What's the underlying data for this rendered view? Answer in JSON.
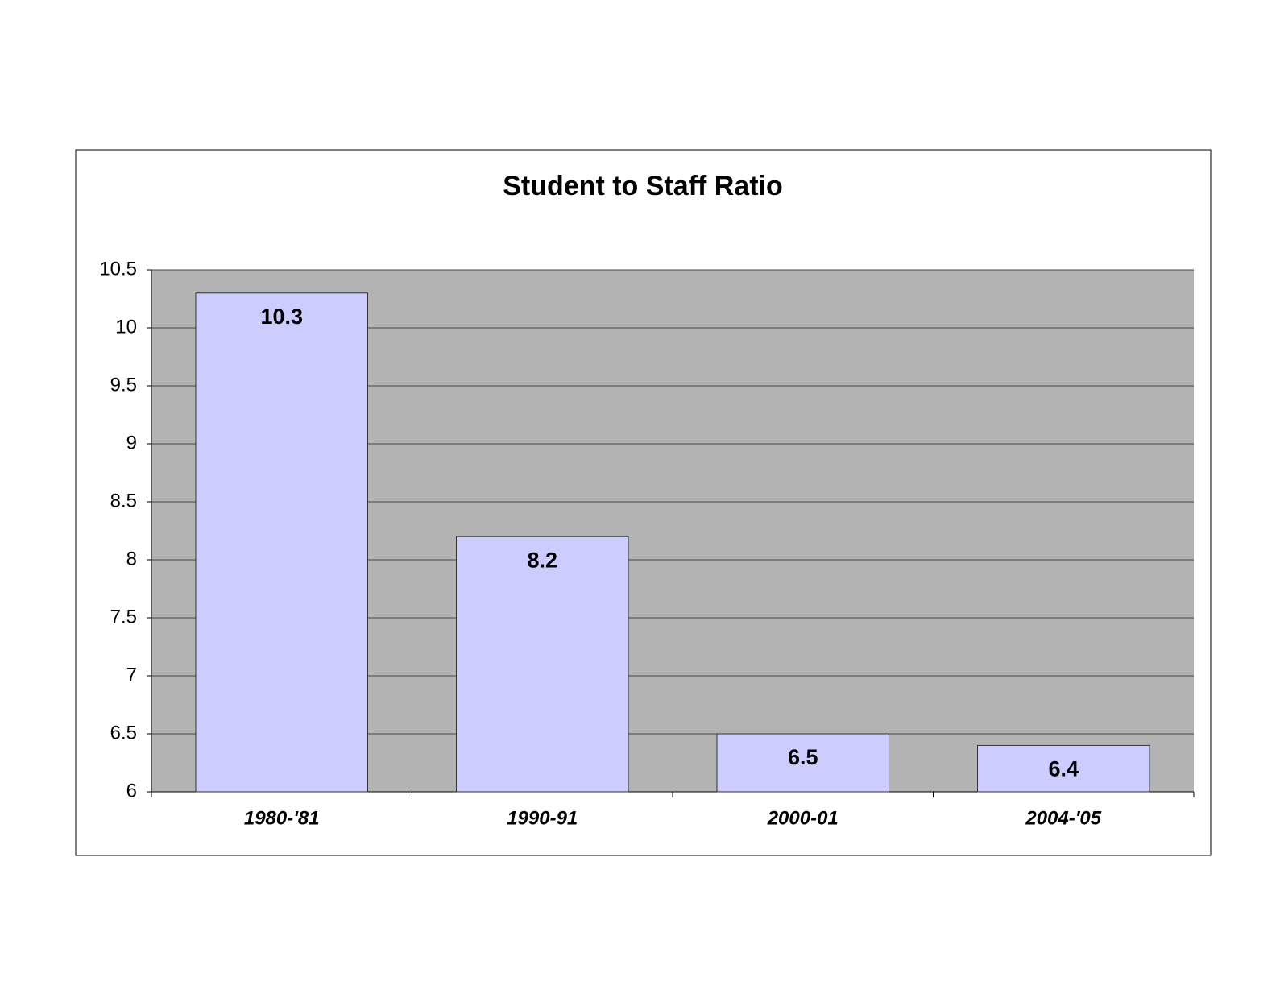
{
  "chart_data": {
    "type": "bar",
    "title": "Student to Staff Ratio",
    "categories": [
      "1980-'81",
      "1990-91",
      "2000-01",
      "2004-'05"
    ],
    "values": [
      10.3,
      8.2,
      6.5,
      6.4
    ],
    "color": "#ccccff",
    "plot_background": "#b3b3b3",
    "ylim": [
      6,
      10.5
    ],
    "yticks": [
      6,
      6.5,
      7,
      7.5,
      8,
      8.5,
      9,
      9.5,
      10,
      10.5
    ],
    "grid": true
  }
}
